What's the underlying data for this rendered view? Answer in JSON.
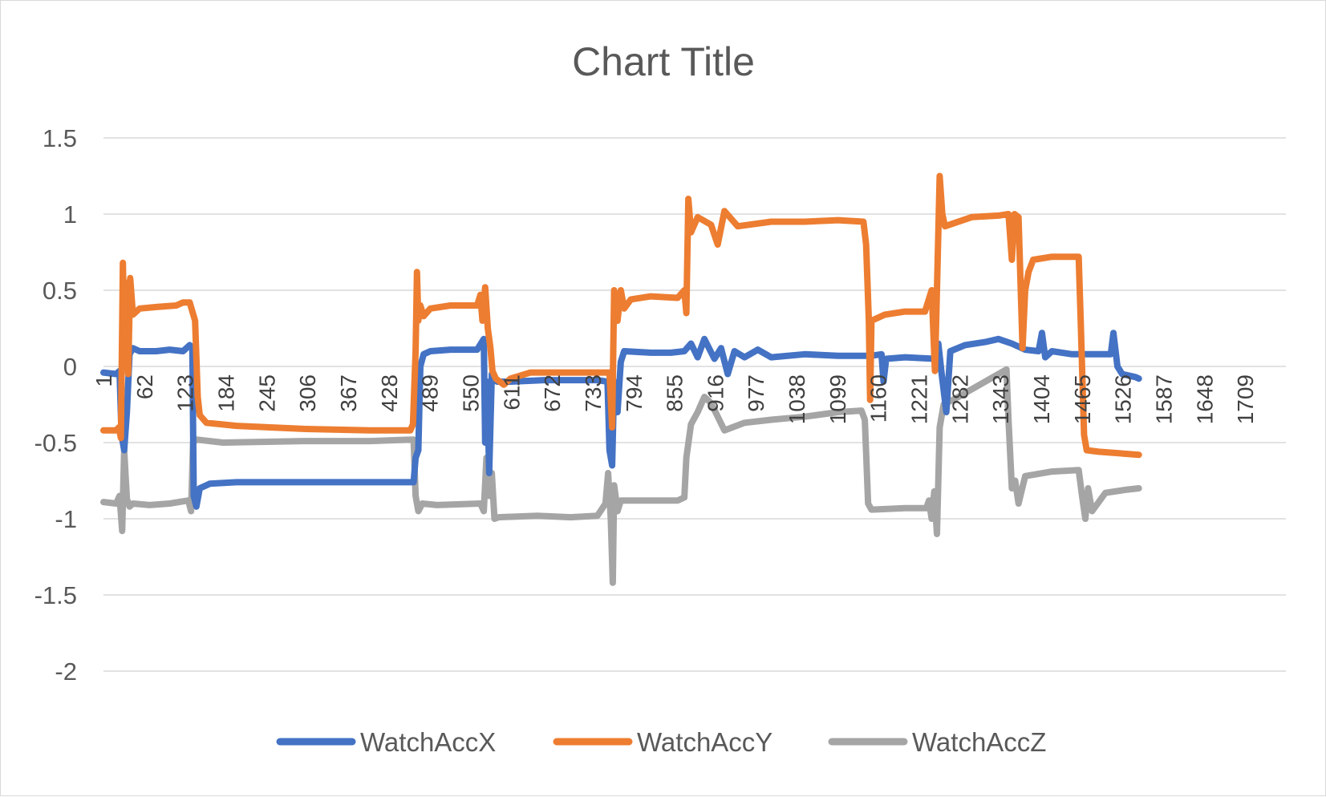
{
  "chart_data": {
    "type": "line",
    "title": "Chart Title",
    "xlabel": "",
    "ylabel": "",
    "ylim": [
      -2,
      1.5
    ],
    "yticks": [
      1.5,
      1,
      0.5,
      0,
      -0.5,
      -1,
      -1.5,
      -2
    ],
    "ytick_labels": [
      "1.5",
      "1",
      "0.5",
      "0",
      "-0.5",
      "-1",
      "-1.5",
      "-2"
    ],
    "xlim": [
      1,
      1770
    ],
    "xticks": [
      1,
      62,
      123,
      184,
      245,
      306,
      367,
      428,
      489,
      550,
      611,
      672,
      733,
      794,
      855,
      916,
      977,
      1038,
      1099,
      1160,
      1221,
      1282,
      1343,
      1404,
      1465,
      1526,
      1587,
      1648,
      1709
    ],
    "grid": true,
    "legend_position": "bottom",
    "series": [
      {
        "name": "WatchAccX",
        "color": "#4472c4",
        "points": [
          [
            1,
            -0.04
          ],
          [
            20,
            -0.05
          ],
          [
            25,
            -0.03
          ],
          [
            28,
            -0.45
          ],
          [
            32,
            -0.55
          ],
          [
            36,
            -0.3
          ],
          [
            40,
            0.08
          ],
          [
            45,
            0.12
          ],
          [
            55,
            0.1
          ],
          [
            80,
            0.1
          ],
          [
            100,
            0.11
          ],
          [
            120,
            0.1
          ],
          [
            130,
            0.14
          ],
          [
            134,
            0.12
          ],
          [
            136,
            -0.85
          ],
          [
            140,
            -0.92
          ],
          [
            145,
            -0.8
          ],
          [
            160,
            -0.77
          ],
          [
            200,
            -0.76
          ],
          [
            300,
            -0.76
          ],
          [
            400,
            -0.76
          ],
          [
            465,
            -0.76
          ],
          [
            468,
            -0.6
          ],
          [
            472,
            -0.55
          ],
          [
            475,
            0.0
          ],
          [
            480,
            0.08
          ],
          [
            490,
            0.1
          ],
          [
            520,
            0.11
          ],
          [
            560,
            0.11
          ],
          [
            570,
            0.18
          ],
          [
            572,
            -0.5
          ],
          [
            575,
            -0.1
          ],
          [
            578,
            -0.7
          ],
          [
            582,
            -0.05
          ],
          [
            590,
            -0.1
          ],
          [
            610,
            -0.1
          ],
          [
            660,
            -0.09
          ],
          [
            700,
            -0.09
          ],
          [
            740,
            -0.09
          ],
          [
            755,
            -0.1
          ],
          [
            758,
            -0.55
          ],
          [
            762,
            -0.65
          ],
          [
            765,
            -0.1
          ],
          [
            770,
            -0.3
          ],
          [
            775,
            0.03
          ],
          [
            780,
            0.1
          ],
          [
            820,
            0.09
          ],
          [
            850,
            0.09
          ],
          [
            870,
            0.1
          ],
          [
            880,
            0.15
          ],
          [
            890,
            0.06
          ],
          [
            900,
            0.18
          ],
          [
            915,
            0.05
          ],
          [
            925,
            0.12
          ],
          [
            935,
            -0.05
          ],
          [
            945,
            0.1
          ],
          [
            960,
            0.06
          ],
          [
            980,
            0.11
          ],
          [
            1000,
            0.06
          ],
          [
            1050,
            0.08
          ],
          [
            1100,
            0.07
          ],
          [
            1150,
            0.07
          ],
          [
            1165,
            0.08
          ],
          [
            1168,
            -0.1
          ],
          [
            1172,
            0.05
          ],
          [
            1200,
            0.06
          ],
          [
            1245,
            0.05
          ],
          [
            1250,
            0.15
          ],
          [
            1255,
            -0.05
          ],
          [
            1262,
            -0.3
          ],
          [
            1268,
            0.1
          ],
          [
            1290,
            0.14
          ],
          [
            1320,
            0.16
          ],
          [
            1340,
            0.18
          ],
          [
            1360,
            0.15
          ],
          [
            1380,
            0.11
          ],
          [
            1400,
            0.1
          ],
          [
            1405,
            0.22
          ],
          [
            1410,
            0.06
          ],
          [
            1420,
            0.1
          ],
          [
            1450,
            0.08
          ],
          [
            1490,
            0.08
          ],
          [
            1508,
            0.08
          ],
          [
            1512,
            0.22
          ],
          [
            1518,
            0.0
          ],
          [
            1525,
            -0.05
          ],
          [
            1545,
            -0.07
          ],
          [
            1550,
            -0.08
          ]
        ]
      },
      {
        "name": "WatchAccY",
        "color": "#ed7d31",
        "points": [
          [
            1,
            -0.42
          ],
          [
            20,
            -0.42
          ],
          [
            24,
            -0.4
          ],
          [
            27,
            -0.47
          ],
          [
            30,
            0.68
          ],
          [
            32,
            0.2
          ],
          [
            35,
            0.55
          ],
          [
            38,
            -0.05
          ],
          [
            41,
            0.58
          ],
          [
            45,
            0.34
          ],
          [
            55,
            0.38
          ],
          [
            80,
            0.39
          ],
          [
            110,
            0.4
          ],
          [
            120,
            0.42
          ],
          [
            130,
            0.42
          ],
          [
            138,
            0.3
          ],
          [
            142,
            -0.2
          ],
          [
            145,
            -0.32
          ],
          [
            155,
            -0.37
          ],
          [
            200,
            -0.39
          ],
          [
            300,
            -0.41
          ],
          [
            400,
            -0.42
          ],
          [
            460,
            -0.42
          ],
          [
            464,
            -0.38
          ],
          [
            468,
            0.1
          ],
          [
            470,
            0.62
          ],
          [
            472,
            0.3
          ],
          [
            475,
            0.4
          ],
          [
            480,
            0.33
          ],
          [
            490,
            0.38
          ],
          [
            520,
            0.4
          ],
          [
            560,
            0.4
          ],
          [
            565,
            0.47
          ],
          [
            568,
            0.3
          ],
          [
            572,
            0.52
          ],
          [
            576,
            0.25
          ],
          [
            580,
            0.12
          ],
          [
            583,
            -0.03
          ],
          [
            588,
            -0.08
          ],
          [
            600,
            -0.12
          ],
          [
            610,
            -0.08
          ],
          [
            640,
            -0.04
          ],
          [
            700,
            -0.04
          ],
          [
            740,
            -0.04
          ],
          [
            758,
            -0.04
          ],
          [
            762,
            -0.4
          ],
          [
            765,
            0.5
          ],
          [
            770,
            0.3
          ],
          [
            775,
            0.5
          ],
          [
            780,
            0.38
          ],
          [
            790,
            0.44
          ],
          [
            820,
            0.46
          ],
          [
            860,
            0.45
          ],
          [
            870,
            0.5
          ],
          [
            873,
            0.35
          ],
          [
            876,
            1.1
          ],
          [
            880,
            0.88
          ],
          [
            890,
            0.98
          ],
          [
            910,
            0.93
          ],
          [
            920,
            0.8
          ],
          [
            930,
            1.02
          ],
          [
            950,
            0.92
          ],
          [
            1000,
            0.95
          ],
          [
            1050,
            0.95
          ],
          [
            1100,
            0.96
          ],
          [
            1138,
            0.95
          ],
          [
            1142,
            0.8
          ],
          [
            1146,
            0.3
          ],
          [
            1148,
            -0.22
          ],
          [
            1150,
            0.3
          ],
          [
            1170,
            0.34
          ],
          [
            1200,
            0.36
          ],
          [
            1230,
            0.36
          ],
          [
            1240,
            0.5
          ],
          [
            1245,
            -0.03
          ],
          [
            1248,
            0.5
          ],
          [
            1252,
            1.25
          ],
          [
            1256,
            1.0
          ],
          [
            1260,
            0.92
          ],
          [
            1300,
            0.98
          ],
          [
            1340,
            0.99
          ],
          [
            1355,
            1.0
          ],
          [
            1360,
            0.7
          ],
          [
            1364,
            1.0
          ],
          [
            1370,
            0.98
          ],
          [
            1376,
            0.12
          ],
          [
            1380,
            0.5
          ],
          [
            1385,
            0.62
          ],
          [
            1392,
            0.7
          ],
          [
            1420,
            0.72
          ],
          [
            1455,
            0.72
          ],
          [
            1460,
            0.72
          ],
          [
            1463,
            0.3
          ],
          [
            1468,
            -0.45
          ],
          [
            1472,
            -0.55
          ],
          [
            1490,
            -0.56
          ],
          [
            1520,
            -0.57
          ],
          [
            1550,
            -0.58
          ]
        ]
      },
      {
        "name": "WatchAccZ",
        "color": "#a5a5a5",
        "points": [
          [
            1,
            -0.89
          ],
          [
            20,
            -0.9
          ],
          [
            25,
            -0.85
          ],
          [
            29,
            -1.08
          ],
          [
            32,
            -0.55
          ],
          [
            36,
            -0.87
          ],
          [
            40,
            -0.92
          ],
          [
            45,
            -0.9
          ],
          [
            70,
            -0.91
          ],
          [
            100,
            -0.9
          ],
          [
            128,
            -0.88
          ],
          [
            132,
            -0.95
          ],
          [
            135,
            -0.5
          ],
          [
            140,
            -0.48
          ],
          [
            180,
            -0.5
          ],
          [
            300,
            -0.49
          ],
          [
            400,
            -0.49
          ],
          [
            465,
            -0.48
          ],
          [
            468,
            -0.85
          ],
          [
            472,
            -0.95
          ],
          [
            478,
            -0.9
          ],
          [
            500,
            -0.91
          ],
          [
            565,
            -0.9
          ],
          [
            570,
            -0.95
          ],
          [
            574,
            -0.6
          ],
          [
            578,
            -0.85
          ],
          [
            582,
            -0.7
          ],
          [
            586,
            -1.0
          ],
          [
            592,
            -0.99
          ],
          [
            650,
            -0.98
          ],
          [
            700,
            -0.99
          ],
          [
            740,
            -0.98
          ],
          [
            752,
            -0.9
          ],
          [
            756,
            -0.7
          ],
          [
            760,
            -1.0
          ],
          [
            763,
            -1.42
          ],
          [
            765,
            -0.78
          ],
          [
            770,
            -0.95
          ],
          [
            775,
            -0.88
          ],
          [
            800,
            -0.88
          ],
          [
            860,
            -0.88
          ],
          [
            870,
            -0.86
          ],
          [
            873,
            -0.6
          ],
          [
            880,
            -0.38
          ],
          [
            890,
            -0.3
          ],
          [
            900,
            -0.2
          ],
          [
            910,
            -0.24
          ],
          [
            930,
            -0.42
          ],
          [
            960,
            -0.37
          ],
          [
            1000,
            -0.35
          ],
          [
            1050,
            -0.33
          ],
          [
            1100,
            -0.3
          ],
          [
            1135,
            -0.29
          ],
          [
            1140,
            -0.35
          ],
          [
            1145,
            -0.9
          ],
          [
            1150,
            -0.94
          ],
          [
            1200,
            -0.93
          ],
          [
            1232,
            -0.93
          ],
          [
            1236,
            -0.88
          ],
          [
            1240,
            -1.0
          ],
          [
            1244,
            -0.82
          ],
          [
            1248,
            -1.1
          ],
          [
            1252,
            -0.4
          ],
          [
            1258,
            -0.25
          ],
          [
            1280,
            -0.2
          ],
          [
            1300,
            -0.15
          ],
          [
            1320,
            -0.1
          ],
          [
            1340,
            -0.05
          ],
          [
            1352,
            -0.02
          ],
          [
            1355,
            -0.35
          ],
          [
            1360,
            -0.8
          ],
          [
            1365,
            -0.75
          ],
          [
            1370,
            -0.9
          ],
          [
            1380,
            -0.72
          ],
          [
            1420,
            -0.69
          ],
          [
            1460,
            -0.68
          ],
          [
            1465,
            -0.85
          ],
          [
            1470,
            -1.0
          ],
          [
            1474,
            -0.8
          ],
          [
            1480,
            -0.95
          ],
          [
            1500,
            -0.83
          ],
          [
            1530,
            -0.81
          ],
          [
            1550,
            -0.8
          ]
        ]
      }
    ]
  }
}
